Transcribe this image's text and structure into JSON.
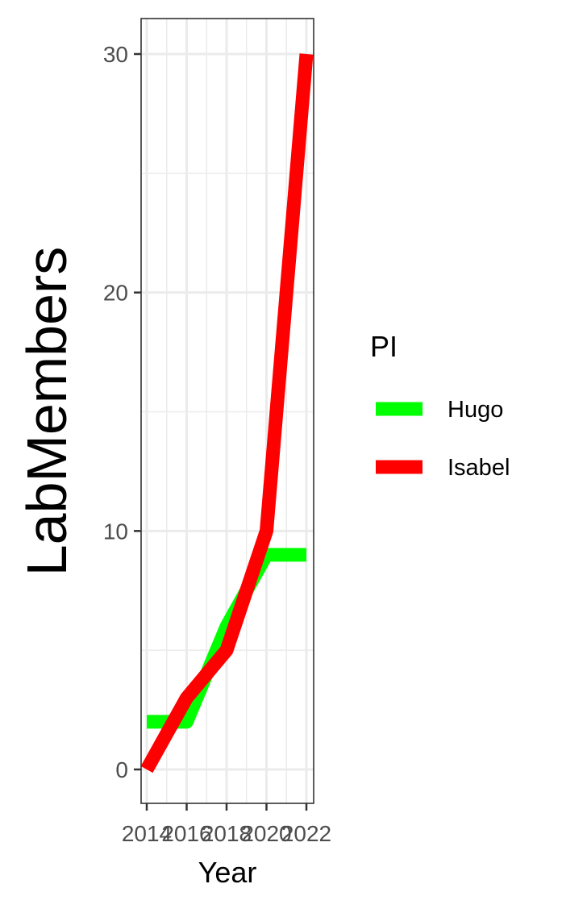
{
  "chart_data": {
    "type": "line",
    "xlabel": "Year",
    "ylabel": "LabMembers",
    "x": [
      2014,
      2016,
      2018,
      2020,
      2022
    ],
    "x_ticks": [
      2014,
      2016,
      2018,
      2020,
      2022
    ],
    "y_ticks": [
      0,
      10,
      20,
      30
    ],
    "xlim": [
      2014,
      2022
    ],
    "ylim": [
      0,
      30
    ],
    "grid": true,
    "legend": {
      "title": "PI",
      "position": "right"
    },
    "series": [
      {
        "name": "Hugo",
        "color": "#00ff00",
        "values": [
          2,
          2,
          6,
          9,
          9
        ]
      },
      {
        "name": "Isabel",
        "color": "#ff0000",
        "values": [
          0,
          3,
          5,
          10,
          30
        ]
      }
    ]
  }
}
